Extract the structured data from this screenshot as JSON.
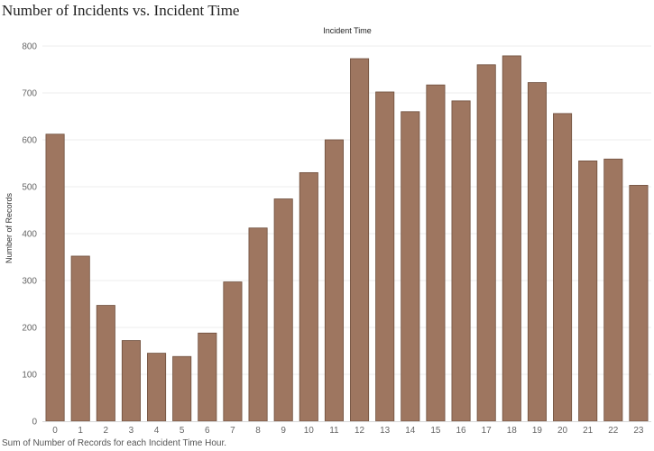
{
  "chart_data": {
    "type": "bar",
    "title": "Number of Incidents vs. Incident Time",
    "header": "Incident Time",
    "ylabel": "Number of Records",
    "footnote": "Sum of Number of Records for each Incident Time Hour.",
    "categories": [
      "0",
      "1",
      "2",
      "3",
      "4",
      "5",
      "6",
      "7",
      "8",
      "9",
      "10",
      "11",
      "12",
      "13",
      "14",
      "15",
      "16",
      "17",
      "18",
      "19",
      "20",
      "21",
      "22",
      "23"
    ],
    "values": [
      612,
      352,
      247,
      172,
      145,
      138,
      188,
      297,
      412,
      474,
      530,
      600,
      773,
      702,
      660,
      717,
      683,
      760,
      779,
      722,
      656,
      555,
      559,
      503
    ],
    "ylim": [
      0,
      800
    ],
    "yticks": [
      0,
      100,
      200,
      300,
      400,
      500,
      600,
      700,
      800
    ],
    "bar_color": "#9E7660",
    "bar_stroke": "#6E4E3C",
    "grid": true
  }
}
